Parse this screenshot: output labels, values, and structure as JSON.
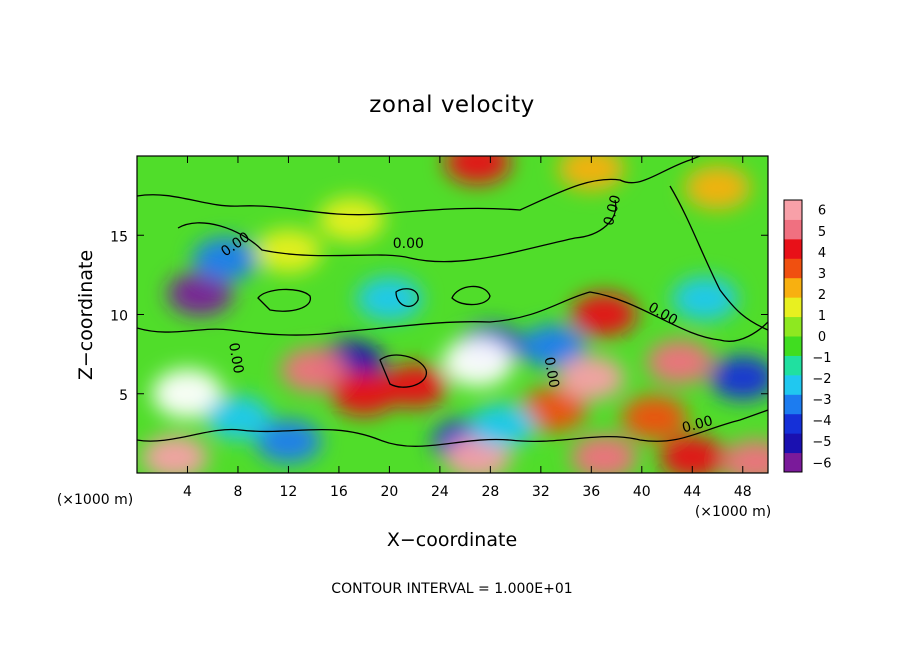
{
  "chart_data": {
    "type": "heatmap",
    "title": "zonal velocity",
    "xlabel": "X−coordinate",
    "ylabel": "Z−coordinate",
    "x_unit_left": "(×1000 m)",
    "x_unit_right": "(×1000 m)",
    "footnote": "CONTOUR INTERVAL = 1.000E+01",
    "xlim": [
      0,
      50
    ],
    "ylim": [
      0,
      20
    ],
    "xticks": [
      "4",
      "8",
      "12",
      "16",
      "20",
      "24",
      "28",
      "32",
      "36",
      "40",
      "44",
      "48"
    ],
    "yticks": [
      "5",
      "10",
      "15"
    ],
    "colorbar": {
      "range": [
        -6,
        6
      ],
      "ticks": [
        "6",
        "5",
        "4",
        "3",
        "2",
        "1",
        "0",
        "−1",
        "−2",
        "−3",
        "−4",
        "−5",
        "−6"
      ],
      "colors": [
        "#7a1a9a",
        "#1a10b0",
        "#1530d8",
        "#1c7cf0",
        "#20c8f0",
        "#20e0a0",
        "#40dd20",
        "#8ee820",
        "#e8f020",
        "#f8b010",
        "#f05010",
        "#e81018",
        "#f07080",
        "#f8a0a8"
      ]
    },
    "contour_labels": [
      "0.00",
      "0.00",
      "0.00",
      "0.00",
      "0.00",
      "0.00",
      "0.00"
    ],
    "features": [
      {
        "x": 5,
        "z": 11.3,
        "value": -5.5
      },
      {
        "x": 7,
        "z": 13.5,
        "value": -3
      },
      {
        "x": 20,
        "z": 11,
        "value": -2.5
      },
      {
        "x": 17,
        "z": 7,
        "value": -5
      },
      {
        "x": 28,
        "z": 8,
        "value": -4
      },
      {
        "x": 33,
        "z": 8,
        "value": -3
      },
      {
        "x": 45,
        "z": 11,
        "value": -2
      },
      {
        "x": 48,
        "z": 6,
        "value": -4
      },
      {
        "x": 26,
        "z": 2,
        "value": -4
      },
      {
        "x": 12,
        "z": 2,
        "value": -3
      },
      {
        "x": 4,
        "z": 5,
        "value": 7
      },
      {
        "x": 14,
        "z": 6.5,
        "value": 5
      },
      {
        "x": 18,
        "z": 5,
        "value": 4
      },
      {
        "x": 22,
        "z": 5.5,
        "value": 3.5
      },
      {
        "x": 27,
        "z": 7,
        "value": 7
      },
      {
        "x": 33,
        "z": 4,
        "value": 3
      },
      {
        "x": 36,
        "z": 6,
        "value": 6
      },
      {
        "x": 37,
        "z": 10,
        "value": 4
      },
      {
        "x": 43,
        "z": 7,
        "value": 5
      },
      {
        "x": 41,
        "z": 3.5,
        "value": 3
      },
      {
        "x": 3,
        "z": 1,
        "value": 6
      },
      {
        "x": 27,
        "z": 1,
        "value": 6
      },
      {
        "x": 37,
        "z": 1,
        "value": 5
      },
      {
        "x": 44,
        "z": 1,
        "value": 4
      },
      {
        "x": 49,
        "z": 0.7,
        "value": 5
      },
      {
        "x": 27,
        "z": 19.6,
        "value": 4
      },
      {
        "x": 36,
        "z": 19.2,
        "value": 2.5
      },
      {
        "x": 17,
        "z": 16,
        "value": 1.5
      },
      {
        "x": 46,
        "z": 18,
        "value": 2
      },
      {
        "x": 12,
        "z": 14,
        "value": 1.5
      },
      {
        "x": 29,
        "z": 3,
        "value": -2
      },
      {
        "x": 8,
        "z": 3.5,
        "value": -2.5
      }
    ],
    "legend": "right"
  }
}
